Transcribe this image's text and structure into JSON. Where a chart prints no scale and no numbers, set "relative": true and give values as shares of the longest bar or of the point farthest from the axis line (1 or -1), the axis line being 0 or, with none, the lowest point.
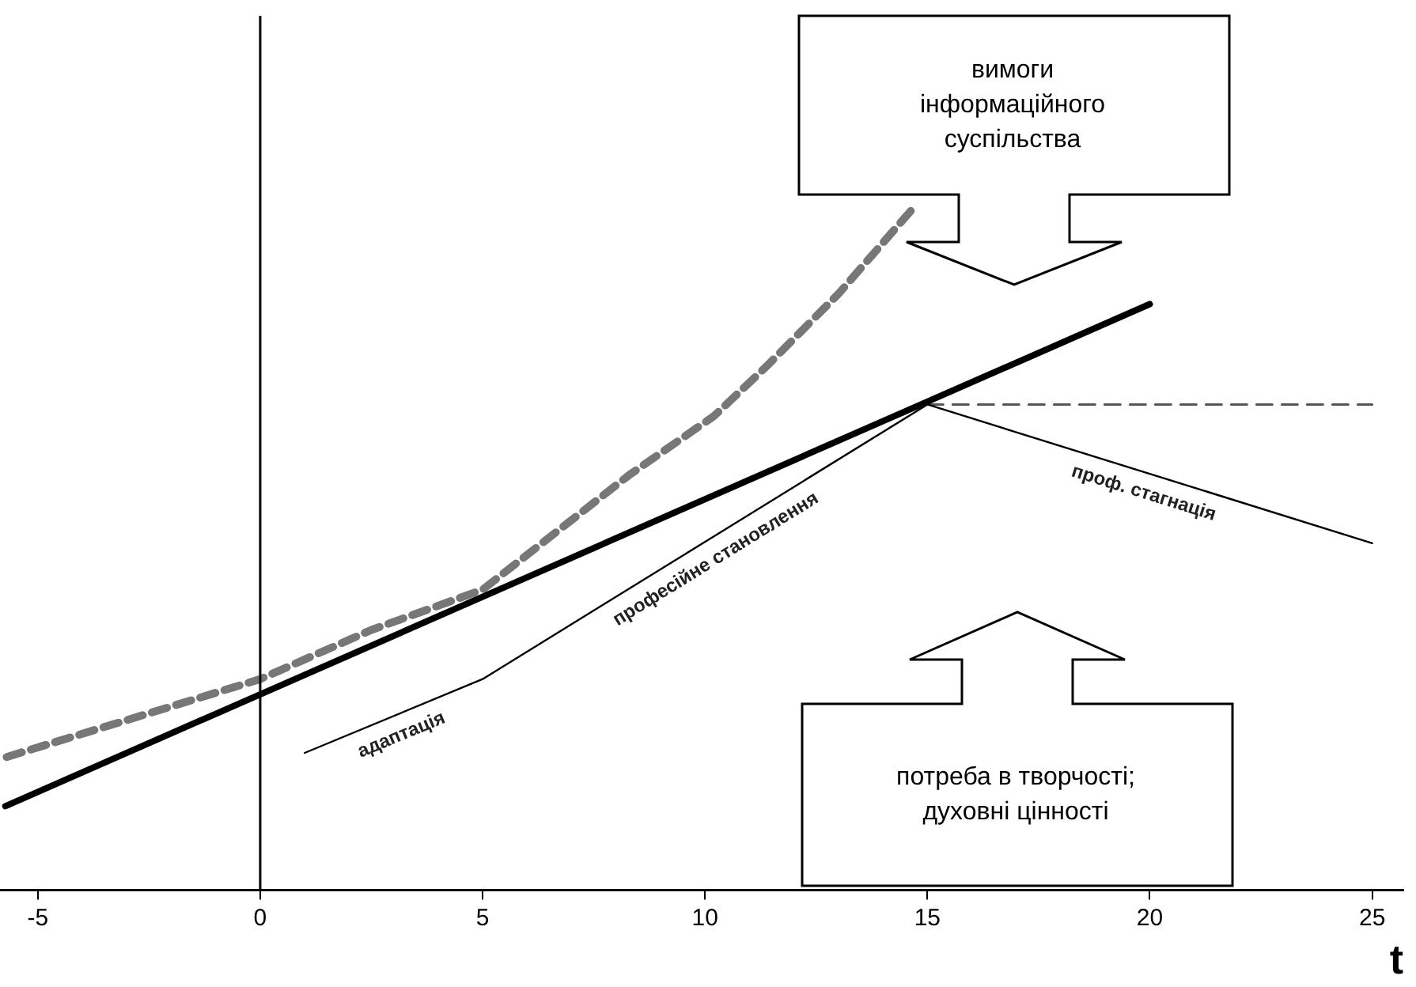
{
  "chart_data": {
    "type": "line",
    "relative": true,
    "xlabel": "t",
    "xlim": [
      -5.85,
      25.7
    ],
    "xticks": [
      -5,
      0,
      5,
      10,
      15,
      20,
      25
    ],
    "grid": false,
    "legend": false,
    "marker": "none",
    "series": [
      {
        "color": "#000000",
        "x": [
          -5.73,
          20
        ],
        "values": [
          0.123,
          0.858
        ],
        "line_style": "solid"
      },
      {
        "color": "#777777",
        "x": [
          -5.7,
          0,
          2.5,
          5,
          8.3,
          10.2,
          11.4,
          13,
          14.7
        ],
        "values": [
          0.195,
          0.309,
          0.381,
          0.44,
          0.608,
          0.694,
          0.768,
          0.873,
          1
        ],
        "line_style": "dashed"
      },
      {
        "color": "#000000",
        "x": [
          1,
          5,
          15,
          25
        ],
        "values": [
          0.201,
          0.309,
          0.711,
          0.508
        ],
        "line_style": "solid"
      },
      {
        "color": "#555555",
        "x": [
          15,
          25
        ],
        "values": [
          0.711,
          0.711
        ],
        "line_style": "dashed"
      }
    ],
    "ref_lines": [
      {
        "axis": "x",
        "value": 0,
        "color": "#000000"
      }
    ],
    "annotations": [
      {
        "text": "адаптація",
        "x": 3,
        "y": 0.255
      },
      {
        "text": "професійне становлення",
        "x": 10,
        "y": 0.51
      },
      {
        "text": "проф. стагнація",
        "x": 20,
        "y": 0.61
      },
      "вимоги\nінформаційного\nсуспільства",
      "потреба в творчості;\nдуховні цінності"
    ]
  }
}
